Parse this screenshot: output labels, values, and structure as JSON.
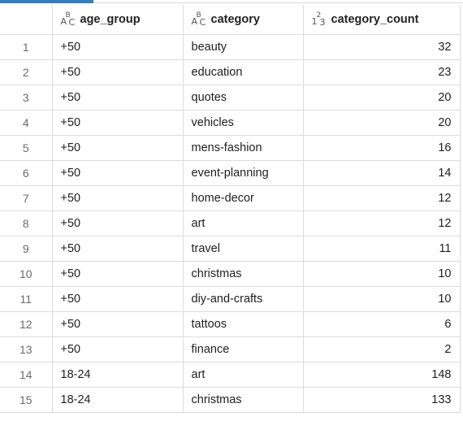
{
  "columns": [
    {
      "name": "age_group",
      "icon": "abc-text-type-icon"
    },
    {
      "name": "category",
      "icon": "abc-text-type-icon"
    },
    {
      "name": "category_count",
      "icon": "123-numeric-type-icon"
    }
  ],
  "rows": [
    {
      "index": "1",
      "age_group": "+50",
      "category": "beauty",
      "category_count": "32"
    },
    {
      "index": "2",
      "age_group": "+50",
      "category": "education",
      "category_count": "23"
    },
    {
      "index": "3",
      "age_group": "+50",
      "category": "quotes",
      "category_count": "20"
    },
    {
      "index": "4",
      "age_group": "+50",
      "category": "vehicles",
      "category_count": "20"
    },
    {
      "index": "5",
      "age_group": "+50",
      "category": "mens-fashion",
      "category_count": "16"
    },
    {
      "index": "6",
      "age_group": "+50",
      "category": "event-planning",
      "category_count": "14"
    },
    {
      "index": "7",
      "age_group": "+50",
      "category": "home-decor",
      "category_count": "12"
    },
    {
      "index": "8",
      "age_group": "+50",
      "category": "art",
      "category_count": "12"
    },
    {
      "index": "9",
      "age_group": "+50",
      "category": "travel",
      "category_count": "11"
    },
    {
      "index": "10",
      "age_group": "+50",
      "category": "christmas",
      "category_count": "10"
    },
    {
      "index": "11",
      "age_group": "+50",
      "category": "diy-and-crafts",
      "category_count": "10"
    },
    {
      "index": "12",
      "age_group": "+50",
      "category": "tattoos",
      "category_count": "6"
    },
    {
      "index": "13",
      "age_group": "+50",
      "category": "finance",
      "category_count": "2"
    },
    {
      "index": "14",
      "age_group": "18-24",
      "category": "art",
      "category_count": "148"
    },
    {
      "index": "15",
      "age_group": "18-24",
      "category": "christmas",
      "category_count": "133"
    }
  ],
  "colors": {
    "accent": "#2f7fc1",
    "grid_line": "#dcdcdc",
    "index_text": "#6b6b6b"
  }
}
